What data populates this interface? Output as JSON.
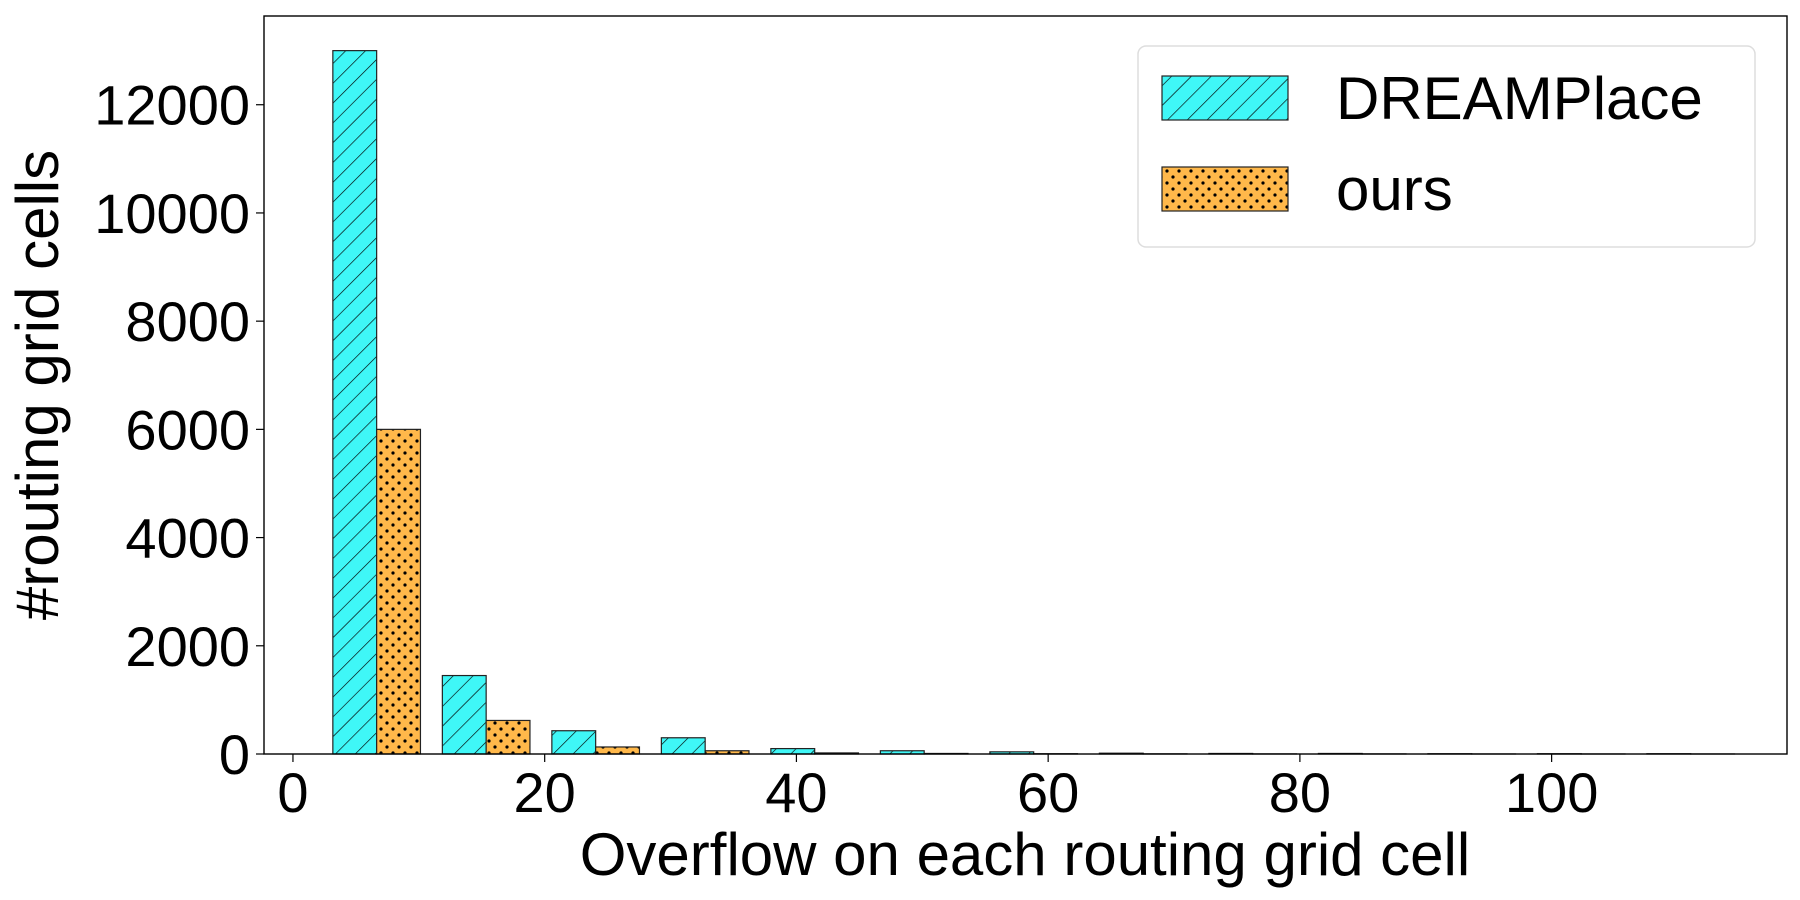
{
  "chart_data": {
    "type": "histogram",
    "xlabel": "Overflow on each routing grid cell",
    "ylabel": "#routing grid cells",
    "bins": [
      2.3,
      11.0,
      19.7,
      28.4,
      37.1,
      45.8,
      54.5,
      63.2,
      71.9,
      80.6,
      89.3,
      98.0,
      106.7,
      115.4
    ],
    "series": [
      {
        "name": "DREAMPlace",
        "color": "#3ff7f7",
        "hatch": "//",
        "values": [
          13000,
          1450,
          430,
          300,
          100,
          60,
          40,
          15,
          10,
          10,
          5,
          5,
          5
        ]
      },
      {
        "name": "ours",
        "color": "#ffb84a",
        "hatch": "..",
        "values": [
          6000,
          620,
          130,
          60,
          20,
          10,
          5,
          3,
          2,
          2,
          1,
          1,
          1
        ]
      }
    ],
    "xlim": [
      -2.3,
      118.7
    ],
    "xticks": [
      0,
      20,
      40,
      60,
      80,
      100
    ],
    "ylim": [
      0,
      13640
    ],
    "yticks": [
      0,
      2000,
      4000,
      6000,
      8000,
      10000,
      12000
    ],
    "legend": "upper right"
  }
}
